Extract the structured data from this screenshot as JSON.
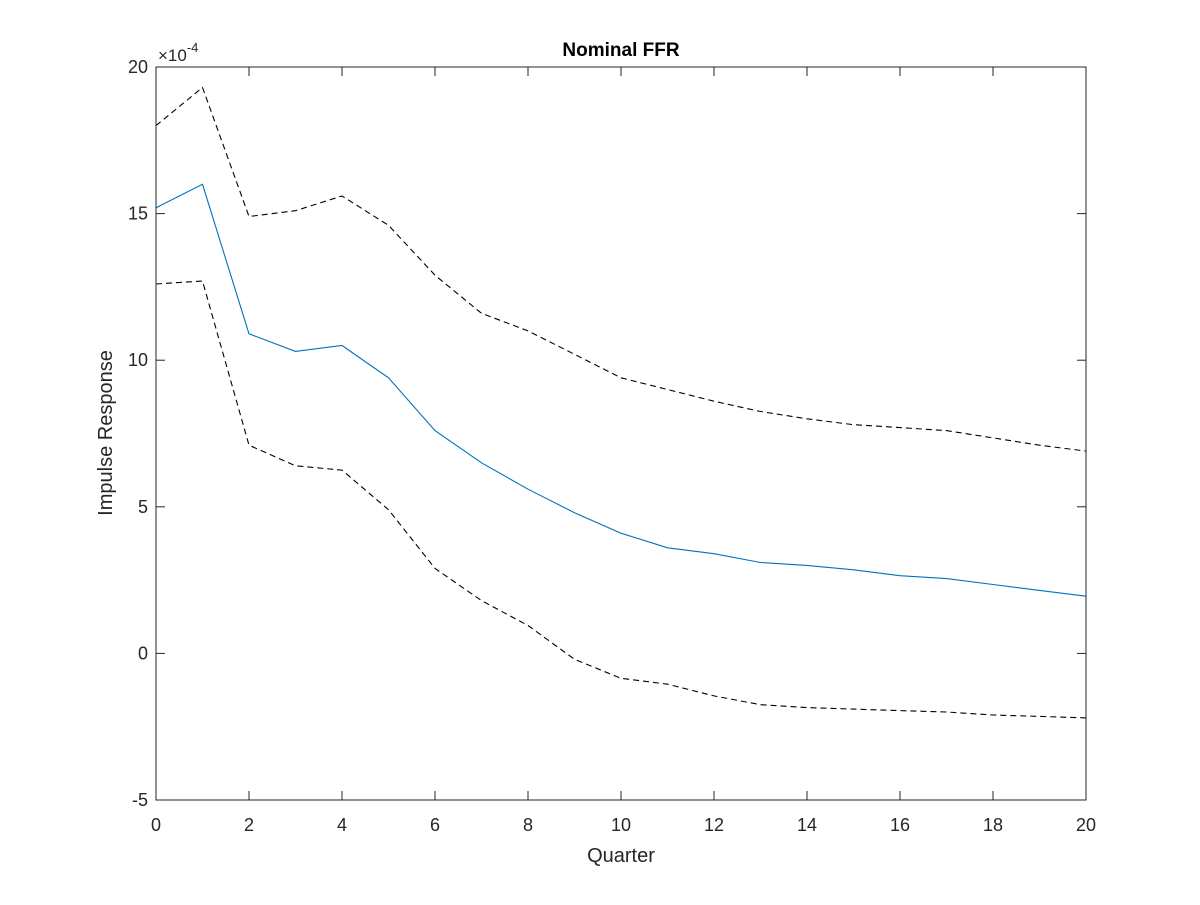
{
  "chart_data": {
    "type": "line",
    "title": "Nominal FFR",
    "xlabel": "Quarter",
    "ylabel": "Impulse Response",
    "exponent_label": "×10",
    "exponent_power": "-4",
    "xlim": [
      0,
      20
    ],
    "ylim": [
      -5,
      20
    ],
    "xticks": [
      0,
      2,
      4,
      6,
      8,
      10,
      12,
      14,
      16,
      18,
      20
    ],
    "yticks": [
      -5,
      0,
      5,
      10,
      15,
      20
    ],
    "grid": false,
    "box": true,
    "x": [
      0,
      1,
      2,
      3,
      4,
      5,
      6,
      7,
      8,
      9,
      10,
      11,
      12,
      13,
      14,
      15,
      16,
      17,
      18,
      19,
      20
    ],
    "series": [
      {
        "role": "response",
        "color": "#0072BD",
        "style": "solid",
        "values": [
          15.2,
          16.0,
          10.9,
          10.3,
          10.5,
          9.4,
          7.6,
          6.5,
          5.6,
          4.8,
          4.1,
          3.6,
          3.4,
          3.1,
          3.0,
          2.85,
          2.65,
          2.55,
          2.35,
          2.15,
          1.95
        ]
      },
      {
        "role": "upper-band",
        "color": "#000000",
        "style": "dashed",
        "values": [
          18.0,
          19.3,
          14.9,
          15.1,
          15.6,
          14.6,
          12.9,
          11.6,
          11.0,
          10.2,
          9.4,
          9.0,
          8.6,
          8.25,
          8.0,
          7.8,
          7.7,
          7.6,
          7.35,
          7.1,
          6.9
        ]
      },
      {
        "role": "lower-band",
        "color": "#000000",
        "style": "dashed",
        "values": [
          12.6,
          12.7,
          7.1,
          6.4,
          6.25,
          4.9,
          2.9,
          1.8,
          0.95,
          -0.2,
          -0.85,
          -1.05,
          -1.45,
          -1.75,
          -1.85,
          -1.9,
          -1.95,
          -2.0,
          -2.1,
          -2.15,
          -2.2
        ]
      }
    ]
  }
}
